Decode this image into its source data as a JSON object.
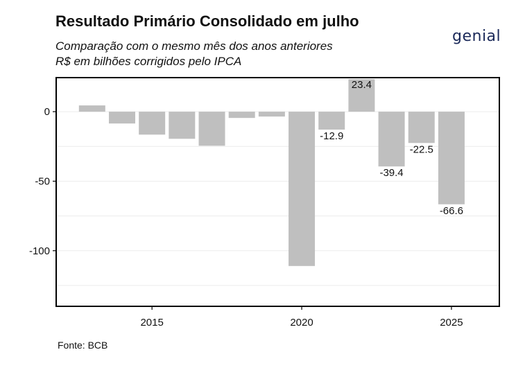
{
  "header": {
    "title": "Resultado Primário Consolidado em julho",
    "subtitle_line1": "Comparação com o mesmo mês dos anos anteriores",
    "subtitle_line2": "R$ em bilhões corrigidos pelo IPCA",
    "logo_text": "genial"
  },
  "footer": {
    "source": "Fonte: BCB"
  },
  "colors": {
    "bar": "#bfbfbf",
    "grid": "#ececec",
    "frame": "#000000",
    "logo": "#1c2a5a"
  },
  "chart_data": {
    "type": "bar",
    "x": [
      2013,
      2014,
      2015,
      2016,
      2017,
      2018,
      2019,
      2020,
      2021,
      2022,
      2023,
      2024,
      2025
    ],
    "values": [
      4.5,
      -8.5,
      -16.5,
      -19.5,
      -24.5,
      -4.5,
      -3.5,
      -111,
      -12.9,
      23.4,
      -39.4,
      -22.5,
      -66.6
    ],
    "data_labels": [
      "",
      "",
      "",
      "",
      "",
      "",
      "",
      "",
      "-12.9",
      "23.4",
      "-39.4",
      "-22.5",
      "-66.6"
    ],
    "xticks": [
      2015,
      2020,
      2025
    ],
    "xtick_labels": [
      "2015",
      "2020",
      "2025"
    ],
    "yticks": [
      0,
      -50,
      -100
    ],
    "ytick_labels": [
      "0",
      "-50",
      "-100"
    ],
    "ylim": [
      -140,
      24.5
    ],
    "xlim": [
      2011.8,
      2026.6
    ],
    "grid": true,
    "title": "Resultado Primário Consolidado em julho",
    "xlabel": "",
    "ylabel": ""
  }
}
